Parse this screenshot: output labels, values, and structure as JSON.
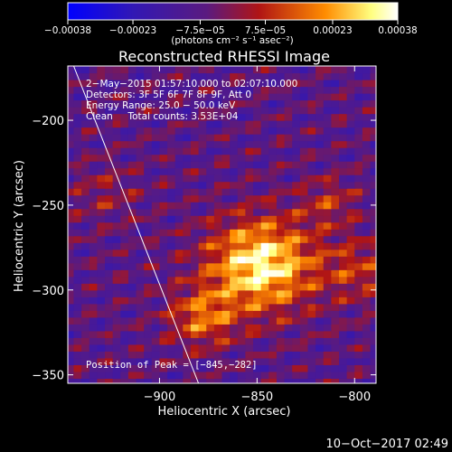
{
  "chart_data": {
    "type": "heatmap",
    "title": "Reconstructed RHESSI Image",
    "xlabel": "Heliocentric X (arcsec)",
    "ylabel": "Heliocentric Y (arcsec)",
    "xlim": [
      -947,
      -789
    ],
    "ylim": [
      -355,
      -168
    ],
    "x_ticks": [
      -900,
      -850,
      -800
    ],
    "x_tick_labels": [
      "−900",
      "−850",
      "−800"
    ],
    "y_ticks": [
      -350,
      -300,
      -250,
      -200
    ],
    "y_tick_labels": [
      "−350",
      "−300",
      "−250",
      "−200"
    ],
    "colorbar": {
      "min": -0.00038,
      "max": 0.00038,
      "ticks": [
        -0.00038,
        -0.00023,
        -7.5e-05,
        7.5e-05,
        0.00023,
        0.00038
      ],
      "tick_labels": [
        "−0.00038",
        "−0.00023",
        "−7.5e−05",
        "7.5e−05",
        "0.00023",
        "0.00038"
      ],
      "unit_label": "(photons cm⁻² s⁻¹ asec⁻²)",
      "colormap": [
        "#0000ff",
        "#4a1a8c",
        "#b01515",
        "#ff8c00",
        "#ffff80",
        "#ffffff"
      ]
    },
    "annotations": [
      "2−May−2015 01:57:10.000 to 02:07:10.000",
      "Detectors: 3F 5F 6F 7F 8F 9F, Att 0",
      "Energy Range: 25.0 − 50.0 keV",
      "Clean     Total counts: 3.53E+04"
    ],
    "peak": {
      "label": "Position of Peak = [−845,−282]",
      "x": -845,
      "y": -282
    },
    "limb_line": [
      [
        -944,
        -168
      ],
      [
        -880,
        -355
      ]
    ]
  },
  "footer_timestamp": "10−Oct−2017 02:49",
  "colors": {
    "background": "#000000",
    "text": "#ffffff"
  }
}
